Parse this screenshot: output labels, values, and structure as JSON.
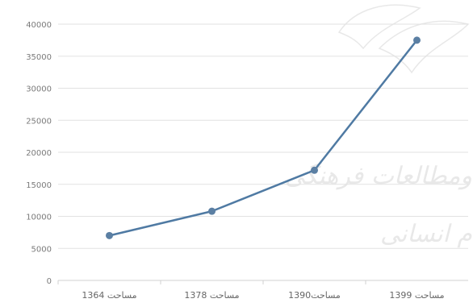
{
  "chart_data": {
    "type": "line",
    "categories": [
      "مساحت 1364",
      "مساحت 1378",
      "مساحت1390",
      "مساحت 1399"
    ],
    "series": [
      {
        "values": [
          7000,
          10800,
          17200,
          37500
        ]
      }
    ],
    "ylim": [
      0,
      40000
    ],
    "yticks": [
      "40000",
      "35000",
      "30000",
      "25000",
      "20000",
      "15000",
      "10000",
      "5000",
      "0"
    ],
    "grid": true,
    "legend": "none",
    "colors": {
      "line": "#4f7aa3",
      "marker": "#5b7fa3",
      "grid": "#e2e2e2",
      "axis": "#d0d0d0",
      "watermark": "#bfbfbf"
    }
  },
  "watermark": {
    "line1": "ومطالعات فرهنگی",
    "line2": "م انسانی"
  }
}
